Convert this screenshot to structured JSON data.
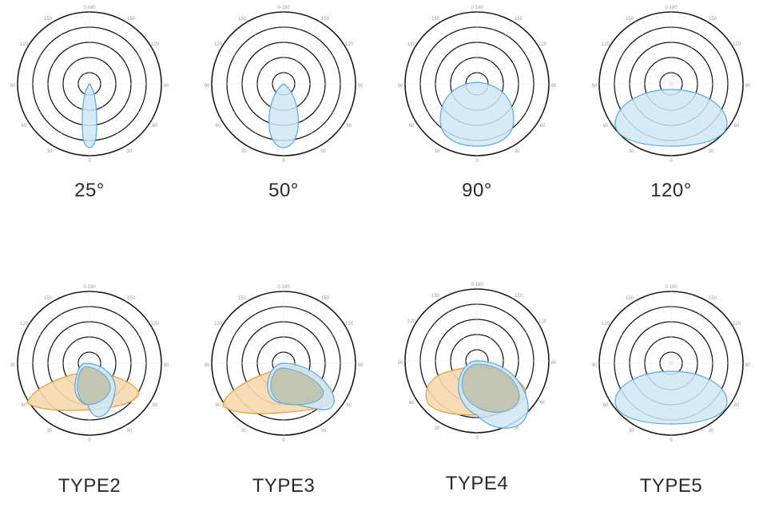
{
  "polar_ticks": {
    "top": "0-180",
    "upper_left": "150",
    "upper_right": "150",
    "mid_upper_left": "120",
    "mid_upper_right": "120",
    "left": "90",
    "right": "90",
    "lower_left": "60",
    "lower_right": "60",
    "bottom_left": "30",
    "bottom_right": "30",
    "bottom": "0"
  },
  "diagrams": [
    {
      "label": "25°",
      "shape": "narrow",
      "beam_angle_deg": 25
    },
    {
      "label": "50°",
      "shape": "medium",
      "beam_angle_deg": 50
    },
    {
      "label": "90°",
      "shape": "wide",
      "beam_angle_deg": 90
    },
    {
      "label": "120°",
      "shape": "verywide",
      "beam_angle_deg": 120
    },
    {
      "label": "TYPE2",
      "shape": "type2"
    },
    {
      "label": "TYPE3",
      "shape": "type3"
    },
    {
      "label": "TYPE4",
      "shape": "type4"
    },
    {
      "label": "TYPE5",
      "shape": "type5"
    }
  ],
  "colors": {
    "blue_fill": "#cfe6f6",
    "blue_stroke": "#5aa8e0",
    "orange_fill": "#f6d8ad",
    "orange_stroke": "#e59a3c",
    "overlap_fill": "#bdbfa8",
    "ring": "#1a1a1a"
  }
}
